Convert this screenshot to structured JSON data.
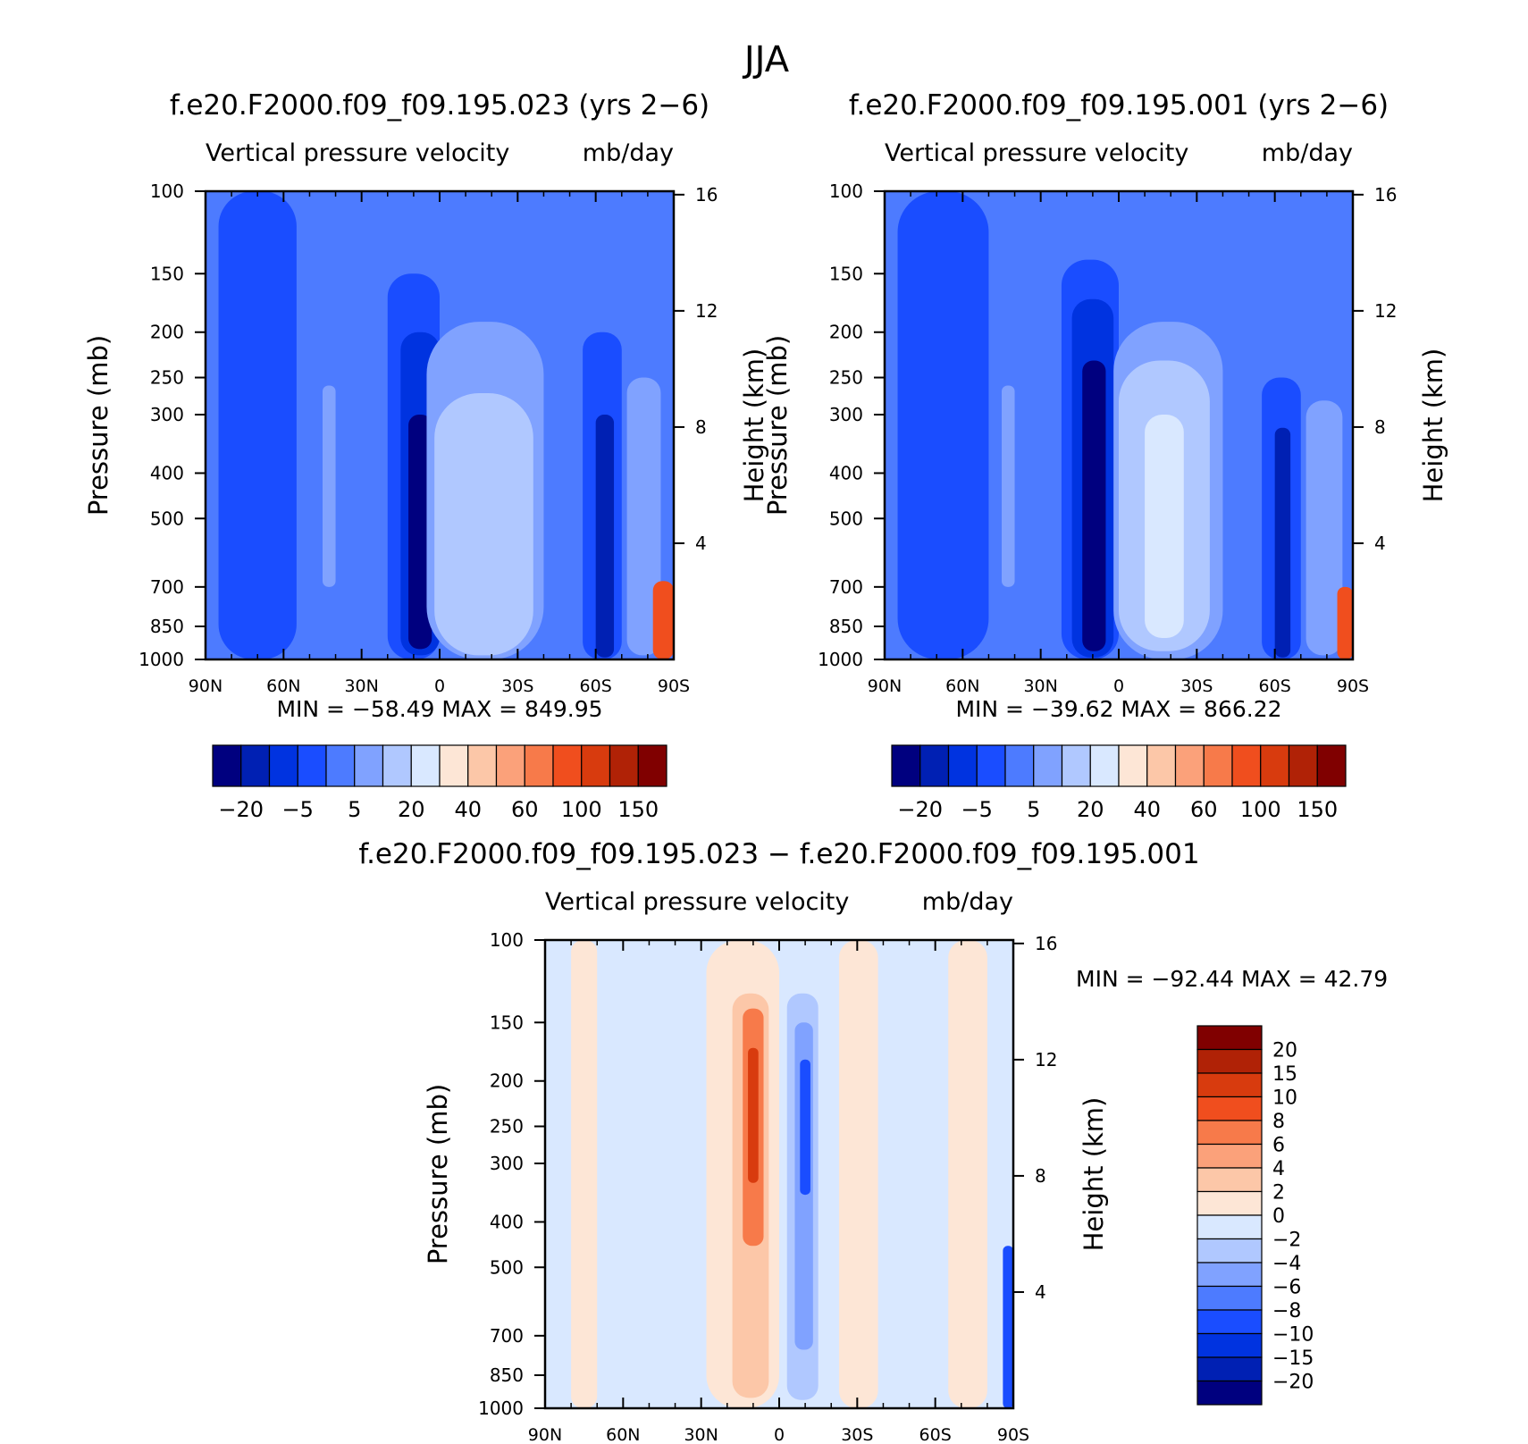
{
  "figure": {
    "title": "JJA"
  },
  "chart_data": [
    {
      "type": "heatmap",
      "title": "f.e20.F2000.f09_f09.195.023 (yrs 2−6)",
      "subtitle_left": "Vertical pressure velocity",
      "subtitle_right": "mb/day",
      "ylabel": "Pressure (mb)",
      "ylabel_right": "Height (km)",
      "x_ticks": [
        "90N",
        "60N",
        "30N",
        "0",
        "30S",
        "60S",
        "90S"
      ],
      "x_values": [
        90,
        60,
        30,
        0,
        -30,
        -60,
        -90
      ],
      "y_ticks": [
        "100",
        "150",
        "200",
        "250",
        "300",
        "400",
        "500",
        "700",
        "850",
        "1000"
      ],
      "y_values": [
        100,
        150,
        200,
        250,
        300,
        400,
        500,
        700,
        850,
        1000
      ],
      "ylim": [
        1000,
        100
      ],
      "y_scale": "log",
      "y_right_ticks": [
        "16",
        "12",
        "8",
        "4"
      ],
      "y_right_values": [
        16,
        12,
        8,
        4
      ],
      "stats": "MIN = −58.49   MAX = 849.95",
      "colorbar": {
        "orientation": "horizontal",
        "colors": [
          "#00007f",
          "#0020b3",
          "#0033e0",
          "#1a4dff",
          "#4d7bff",
          "#80a2ff",
          "#b0c8ff",
          "#d9e8ff",
          "#fde6d6",
          "#fcc7a8",
          "#fba17a",
          "#f77a4a",
          "#f04e1e",
          "#d83b0e",
          "#b02206",
          "#800000"
        ],
        "labels": [
          "−20",
          "−5",
          "5",
          "20",
          "40",
          "60",
          "100",
          "150"
        ]
      },
      "fields": [
        {
          "lat_min": 90,
          "lat_max": -90,
          "p_top": 100,
          "p_bot": 1000,
          "color": "#4d7bff"
        },
        {
          "lat_min": 85,
          "lat_max": 55,
          "p_top": 100,
          "p_bot": 1000,
          "color": "#1a4dff"
        },
        {
          "lat_min": 20,
          "lat_max": 0,
          "p_top": 150,
          "p_bot": 1000,
          "color": "#1a4dff"
        },
        {
          "lat_min": 15,
          "lat_max": 0,
          "p_top": 200,
          "p_bot": 980,
          "color": "#0033e0"
        },
        {
          "lat_min": 12,
          "lat_max": 3,
          "p_top": 300,
          "p_bot": 950,
          "color": "#00007f"
        },
        {
          "lat_min": 5,
          "lat_max": -40,
          "p_top": 190,
          "p_bot": 1000,
          "color": "#80a2ff"
        },
        {
          "lat_min": 2,
          "lat_max": -36,
          "p_top": 270,
          "p_bot": 980,
          "color": "#b0c8ff"
        },
        {
          "lat_min": 45,
          "lat_max": 40,
          "p_top": 260,
          "p_bot": 700,
          "color": "#80a2ff"
        },
        {
          "lat_min": -55,
          "lat_max": -70,
          "p_top": 200,
          "p_bot": 1000,
          "color": "#1a4dff"
        },
        {
          "lat_min": -60,
          "lat_max": -67,
          "p_top": 300,
          "p_bot": 990,
          "color": "#0020b3"
        },
        {
          "lat_min": -72,
          "lat_max": -85,
          "p_top": 250,
          "p_bot": 980,
          "color": "#80a2ff"
        },
        {
          "lat_min": -82,
          "lat_max": -90,
          "p_top": 680,
          "p_bot": 1000,
          "color": "#f04e1e"
        }
      ]
    },
    {
      "type": "heatmap",
      "title": "f.e20.F2000.f09_f09.195.001 (yrs 2−6)",
      "subtitle_left": "Vertical pressure velocity",
      "subtitle_right": "mb/day",
      "ylabel": "Pressure (mb)",
      "ylabel_right": "Height (km)",
      "x_ticks": [
        "90N",
        "60N",
        "30N",
        "0",
        "30S",
        "60S",
        "90S"
      ],
      "x_values": [
        90,
        60,
        30,
        0,
        -30,
        -60,
        -90
      ],
      "y_ticks": [
        "100",
        "150",
        "200",
        "250",
        "300",
        "400",
        "500",
        "700",
        "850",
        "1000"
      ],
      "y_values": [
        100,
        150,
        200,
        250,
        300,
        400,
        500,
        700,
        850,
        1000
      ],
      "ylim": [
        1000,
        100
      ],
      "y_scale": "log",
      "y_right_ticks": [
        "16",
        "12",
        "8",
        "4"
      ],
      "y_right_values": [
        16,
        12,
        8,
        4
      ],
      "stats": "MIN = −39.62   MAX = 866.22",
      "colorbar": {
        "orientation": "horizontal",
        "colors": [
          "#00007f",
          "#0020b3",
          "#0033e0",
          "#1a4dff",
          "#4d7bff",
          "#80a2ff",
          "#b0c8ff",
          "#d9e8ff",
          "#fde6d6",
          "#fcc7a8",
          "#fba17a",
          "#f77a4a",
          "#f04e1e",
          "#d83b0e",
          "#b02206",
          "#800000"
        ],
        "labels": [
          "−20",
          "−5",
          "5",
          "20",
          "40",
          "60",
          "100",
          "150"
        ]
      },
      "fields": [
        {
          "lat_min": 90,
          "lat_max": -90,
          "p_top": 100,
          "p_bot": 1000,
          "color": "#4d7bff"
        },
        {
          "lat_min": 85,
          "lat_max": 50,
          "p_top": 100,
          "p_bot": 1000,
          "color": "#1a4dff"
        },
        {
          "lat_min": 22,
          "lat_max": 0,
          "p_top": 140,
          "p_bot": 1000,
          "color": "#1a4dff"
        },
        {
          "lat_min": 18,
          "lat_max": 2,
          "p_top": 170,
          "p_bot": 990,
          "color": "#0033e0"
        },
        {
          "lat_min": 14,
          "lat_max": 5,
          "p_top": 230,
          "p_bot": 960,
          "color": "#00007f"
        },
        {
          "lat_min": 2,
          "lat_max": -40,
          "p_top": 190,
          "p_bot": 1000,
          "color": "#80a2ff"
        },
        {
          "lat_min": 0,
          "lat_max": -35,
          "p_top": 230,
          "p_bot": 960,
          "color": "#b0c8ff"
        },
        {
          "lat_min": -10,
          "lat_max": -25,
          "p_top": 300,
          "p_bot": 900,
          "color": "#d9e8ff"
        },
        {
          "lat_min": 45,
          "lat_max": 40,
          "p_top": 260,
          "p_bot": 700,
          "color": "#80a2ff"
        },
        {
          "lat_min": -55,
          "lat_max": -70,
          "p_top": 250,
          "p_bot": 1000,
          "color": "#1a4dff"
        },
        {
          "lat_min": -60,
          "lat_max": -66,
          "p_top": 320,
          "p_bot": 990,
          "color": "#0020b3"
        },
        {
          "lat_min": -72,
          "lat_max": -86,
          "p_top": 280,
          "p_bot": 980,
          "color": "#80a2ff"
        },
        {
          "lat_min": -84,
          "lat_max": -90,
          "p_top": 700,
          "p_bot": 1000,
          "color": "#f04e1e"
        }
      ]
    },
    {
      "type": "heatmap",
      "title": "f.e20.F2000.f09_f09.195.023 − f.e20.F2000.f09_f09.195.001",
      "subtitle_left": "Vertical pressure velocity",
      "subtitle_right": "mb/day",
      "ylabel": "Pressure (mb)",
      "ylabel_right": "Height (km)",
      "x_ticks": [
        "90N",
        "60N",
        "30N",
        "0",
        "30S",
        "60S",
        "90S"
      ],
      "x_values": [
        90,
        60,
        30,
        0,
        -30,
        -60,
        -90
      ],
      "y_ticks": [
        "100",
        "150",
        "200",
        "250",
        "300",
        "400",
        "500",
        "700",
        "850",
        "1000"
      ],
      "y_values": [
        100,
        150,
        200,
        250,
        300,
        400,
        500,
        700,
        850,
        1000
      ],
      "ylim": [
        1000,
        100
      ],
      "y_scale": "log",
      "y_right_ticks": [
        "16",
        "12",
        "8",
        "4"
      ],
      "y_right_values": [
        16,
        12,
        8,
        4
      ],
      "stats": "MIN = −92.44   MAX =  42.79",
      "colorbar": {
        "orientation": "vertical",
        "colors": [
          "#800000",
          "#b02206",
          "#d83b0e",
          "#f04e1e",
          "#f77a4a",
          "#fba17a",
          "#fcc7a8",
          "#fde6d6",
          "#d9e8ff",
          "#b0c8ff",
          "#80a2ff",
          "#4d7bff",
          "#1a4dff",
          "#0033e0",
          "#0020b3",
          "#00007f"
        ],
        "labels": [
          "20",
          "15",
          "10",
          "8",
          "6",
          "4",
          "2",
          "0",
          "−2",
          "−4",
          "−6",
          "−8",
          "−10",
          "−15",
          "−20"
        ]
      },
      "fields": [
        {
          "lat_min": 90,
          "lat_max": -90,
          "p_top": 100,
          "p_bot": 1000,
          "color": "#d9e8ff"
        },
        {
          "lat_min": 80,
          "lat_max": 70,
          "p_top": 100,
          "p_bot": 1000,
          "color": "#fde6d6"
        },
        {
          "lat_min": -23,
          "lat_max": -38,
          "p_top": 100,
          "p_bot": 1000,
          "color": "#fde6d6"
        },
        {
          "lat_min": -65,
          "lat_max": -80,
          "p_top": 100,
          "p_bot": 1000,
          "color": "#fde6d6"
        },
        {
          "lat_min": 28,
          "lat_max": 0,
          "p_top": 100,
          "p_bot": 1000,
          "color": "#fde6d6"
        },
        {
          "lat_min": 18,
          "lat_max": 4,
          "p_top": 130,
          "p_bot": 950,
          "color": "#fcc7a8"
        },
        {
          "lat_min": 14,
          "lat_max": 6,
          "p_top": 140,
          "p_bot": 450,
          "color": "#f77a4a"
        },
        {
          "lat_min": 12,
          "lat_max": 8,
          "p_top": 170,
          "p_bot": 330,
          "color": "#d83b0e"
        },
        {
          "lat_min": -3,
          "lat_max": -15,
          "p_top": 130,
          "p_bot": 960,
          "color": "#b0c8ff"
        },
        {
          "lat_min": -6,
          "lat_max": -13,
          "p_top": 150,
          "p_bot": 750,
          "color": "#80a2ff"
        },
        {
          "lat_min": -8,
          "lat_max": -12,
          "p_top": 180,
          "p_bot": 350,
          "color": "#1a4dff"
        },
        {
          "lat_min": -86,
          "lat_max": -90,
          "p_top": 450,
          "p_bot": 1000,
          "color": "#1a4dff"
        }
      ]
    }
  ]
}
